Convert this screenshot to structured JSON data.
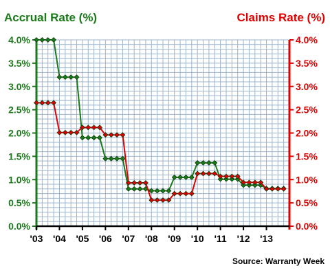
{
  "chart_data": {
    "type": "line",
    "title_left": "Accrual Rate (%)",
    "title_right": "Claims Rate (%)",
    "source": "Source: Warranty Week",
    "colors": {
      "accrual": "#1a7a1a",
      "claims": "#e00000",
      "grid": "#9cb4cc"
    },
    "ylim": [
      0,
      4
    ],
    "y_ticks": [
      "0.0%",
      "0.5%",
      "1.0%",
      "1.5%",
      "2.0%",
      "2.5%",
      "3.0%",
      "3.5%",
      "4.0%"
    ],
    "x_ticks": [
      "'03",
      "'04",
      "'05",
      "'06",
      "'07",
      "'08",
      "'09",
      "'10",
      "'11",
      "'12",
      "'13"
    ],
    "x_range": [
      2003,
      2014
    ],
    "grid": true,
    "series": [
      {
        "key": "accrual",
        "quarters": [
          {
            "start": 2003.0,
            "values": [
              4.0,
              4.0,
              4.0,
              4.0
            ]
          },
          {
            "start": 2004.0,
            "values": [
              3.2,
              3.2,
              3.2,
              3.2
            ]
          },
          {
            "start": 2005.0,
            "values": [
              1.9,
              1.9,
              1.9,
              1.9
            ]
          },
          {
            "start": 2006.0,
            "values": [
              1.45,
              1.45,
              1.45,
              1.45
            ]
          },
          {
            "start": 2007.0,
            "values": [
              0.8,
              0.8,
              0.8,
              0.8
            ]
          },
          {
            "start": 2008.0,
            "values": [
              0.76,
              0.76,
              0.76,
              0.76
            ]
          },
          {
            "start": 2009.0,
            "values": [
              1.05,
              1.05,
              1.05,
              1.05
            ]
          },
          {
            "start": 2010.0,
            "values": [
              1.36,
              1.36,
              1.36,
              1.36
            ]
          },
          {
            "start": 2011.0,
            "values": [
              1.01,
              1.01,
              1.01,
              1.01
            ]
          },
          {
            "start": 2012.0,
            "values": [
              0.88,
              0.88,
              0.88,
              0.88
            ]
          },
          {
            "start": 2013.0,
            "values": [
              0.81,
              0.81,
              0.81,
              0.81
            ]
          }
        ]
      },
      {
        "key": "claims",
        "quarters": [
          {
            "start": 2003.0,
            "values": [
              2.65,
              2.65,
              2.65,
              2.65
            ]
          },
          {
            "start": 2004.0,
            "values": [
              2.01,
              2.01,
              2.01,
              2.01
            ]
          },
          {
            "start": 2005.0,
            "values": [
              2.12,
              2.12,
              2.12,
              2.12
            ]
          },
          {
            "start": 2006.0,
            "values": [
              1.96,
              1.96,
              1.96,
              1.96
            ]
          },
          {
            "start": 2007.0,
            "values": [
              0.93,
              0.93,
              0.93,
              0.93
            ]
          },
          {
            "start": 2008.0,
            "values": [
              0.56,
              0.56,
              0.56,
              0.56
            ]
          },
          {
            "start": 2009.0,
            "values": [
              0.7,
              0.7,
              0.7,
              0.7
            ]
          },
          {
            "start": 2010.0,
            "values": [
              1.13,
              1.13,
              1.13,
              1.13
            ]
          },
          {
            "start": 2011.0,
            "values": [
              1.07,
              1.07,
              1.07,
              1.07
            ]
          },
          {
            "start": 2012.0,
            "values": [
              0.94,
              0.94,
              0.94,
              0.94
            ]
          },
          {
            "start": 2013.0,
            "values": [
              0.8,
              0.8,
              0.8,
              0.8
            ]
          }
        ]
      }
    ]
  }
}
